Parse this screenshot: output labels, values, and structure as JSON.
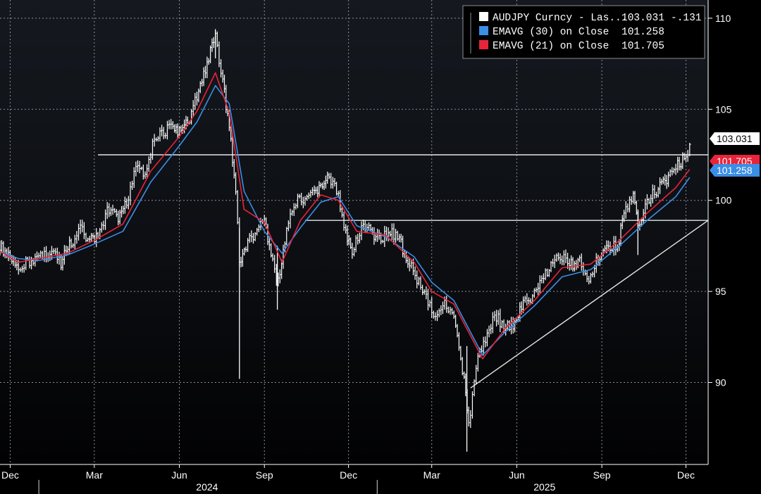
{
  "chart_data": {
    "type": "line",
    "title": "",
    "xlabel": "",
    "ylabel": "",
    "ylim": [
      85.5,
      111
    ],
    "x_range": [
      "2023-11-20",
      "2025-12-25"
    ],
    "grid": true,
    "legend_position": "top-right",
    "y_ticks": [
      90,
      95,
      100,
      105,
      110
    ],
    "x_ticks": [
      {
        "date": "2023-12-01",
        "label": "Dec"
      },
      {
        "date": "2024-03-01",
        "label": "Mar"
      },
      {
        "date": "2024-06-01",
        "label": "Jun"
      },
      {
        "date": "2024-09-01",
        "label": "Sep"
      },
      {
        "date": "2024-12-01",
        "label": "Dec"
      },
      {
        "date": "2025-03-01",
        "label": "Mar"
      },
      {
        "date": "2025-06-01",
        "label": "Jun"
      },
      {
        "date": "2025-09-01",
        "label": "Sep"
      },
      {
        "date": "2025-12-01",
        "label": "Dec"
      }
    ],
    "year_labels": [
      {
        "date": "2024-07-01",
        "label": "2024"
      },
      {
        "date": "2025-07-01",
        "label": "2025"
      }
    ],
    "year_dividers": [
      "2024-01-01",
      "2025-01-01"
    ],
    "series": [
      {
        "name": "AUDJPY Curncy - Las...",
        "legend_value": "103.031",
        "legend_change": "-.131",
        "tag_label": "103.031",
        "color": "#ffffff",
        "style": "bars",
        "points": [
          [
            "2023-11-20",
            97.5
          ],
          [
            "2023-12-01",
            96.8
          ],
          [
            "2023-12-10",
            96.0
          ],
          [
            "2023-12-20",
            96.7
          ],
          [
            "2024-01-01",
            96.9
          ],
          [
            "2024-01-15",
            97.2
          ],
          [
            "2024-01-25",
            96.6
          ],
          [
            "2024-02-05",
            97.7
          ],
          [
            "2024-02-15",
            98.4
          ],
          [
            "2024-02-25",
            97.7
          ],
          [
            "2024-03-05",
            98.0
          ],
          [
            "2024-03-15",
            99.5
          ],
          [
            "2024-03-25",
            99.0
          ],
          [
            "2024-04-05",
            99.8
          ],
          [
            "2024-04-15",
            102.0
          ],
          [
            "2024-04-25",
            101.5
          ],
          [
            "2024-05-05",
            103.3
          ],
          [
            "2024-05-15",
            103.8
          ],
          [
            "2024-05-25",
            104.1
          ],
          [
            "2024-06-01",
            103.7
          ],
          [
            "2024-06-10",
            104.2
          ],
          [
            "2024-06-20",
            105.7
          ],
          [
            "2024-07-01",
            107.5
          ],
          [
            "2024-07-10",
            109.0
          ],
          [
            "2024-07-18",
            106.5
          ],
          [
            "2024-07-25",
            104.0
          ],
          [
            "2024-08-01",
            100.5
          ],
          [
            "2024-08-05",
            96.5
          ],
          [
            "2024-08-12",
            97.5
          ],
          [
            "2024-08-20",
            98.0
          ],
          [
            "2024-09-01",
            99.0
          ],
          [
            "2024-09-10",
            96.5
          ],
          [
            "2024-09-16",
            95.5
          ],
          [
            "2024-09-25",
            98.5
          ],
          [
            "2024-10-05",
            100.0
          ],
          [
            "2024-10-15",
            99.8
          ],
          [
            "2024-10-25",
            100.4
          ],
          [
            "2024-11-01",
            100.8
          ],
          [
            "2024-11-10",
            101.2
          ],
          [
            "2024-11-20",
            100.3
          ],
          [
            "2024-11-28",
            98.3
          ],
          [
            "2024-12-05",
            97.3
          ],
          [
            "2024-12-15",
            98.5
          ],
          [
            "2024-12-25",
            98.3
          ],
          [
            "2025-01-05",
            97.8
          ],
          [
            "2025-01-15",
            98.4
          ],
          [
            "2025-01-25",
            97.8
          ],
          [
            "2025-02-05",
            96.5
          ],
          [
            "2025-02-15",
            95.5
          ],
          [
            "2025-02-25",
            94.5
          ],
          [
            "2025-03-05",
            93.5
          ],
          [
            "2025-03-15",
            94.6
          ],
          [
            "2025-03-25",
            93.5
          ],
          [
            "2025-04-05",
            90.0
          ],
          [
            "2025-04-10",
            87.5
          ],
          [
            "2025-04-18",
            91.0
          ],
          [
            "2025-04-28",
            92.3
          ],
          [
            "2025-05-08",
            93.8
          ],
          [
            "2025-05-18",
            93.0
          ],
          [
            "2025-05-28",
            93.1
          ],
          [
            "2025-06-08",
            94.3
          ],
          [
            "2025-06-18",
            94.6
          ],
          [
            "2025-06-28",
            95.6
          ],
          [
            "2025-07-08",
            96.5
          ],
          [
            "2025-07-18",
            96.9
          ],
          [
            "2025-07-28",
            96.5
          ],
          [
            "2025-08-08",
            96.6
          ],
          [
            "2025-08-18",
            95.7
          ],
          [
            "2025-08-28",
            96.8
          ],
          [
            "2025-09-08",
            97.6
          ],
          [
            "2025-09-18",
            97.4
          ],
          [
            "2025-09-25",
            99.3
          ],
          [
            "2025-10-05",
            100.2
          ],
          [
            "2025-10-12",
            98.5
          ],
          [
            "2025-10-20",
            100.0
          ],
          [
            "2025-11-01",
            100.6
          ],
          [
            "2025-11-12",
            101.3
          ],
          [
            "2025-11-22",
            101.9
          ],
          [
            "2025-12-01",
            102.5
          ],
          [
            "2025-12-05",
            103.0
          ]
        ]
      },
      {
        "name": "EMAVG (30)  on Close",
        "legend_value": "101.258",
        "tag_label": "101.258",
        "color": "#3a8ee6",
        "style": "line",
        "points": [
          [
            "2023-11-20",
            97.2
          ],
          [
            "2023-12-10",
            96.8
          ],
          [
            "2024-01-01",
            96.7
          ],
          [
            "2024-02-01",
            97.0
          ],
          [
            "2024-03-01",
            97.6
          ],
          [
            "2024-04-01",
            98.3
          ],
          [
            "2024-05-01",
            101.0
          ],
          [
            "2024-06-01",
            103.0
          ],
          [
            "2024-06-20",
            104.3
          ],
          [
            "2024-07-10",
            106.3
          ],
          [
            "2024-07-25",
            105.3
          ],
          [
            "2024-08-10",
            100.5
          ],
          [
            "2024-09-01",
            98.3
          ],
          [
            "2024-09-20",
            97.1
          ],
          [
            "2024-10-10",
            98.5
          ],
          [
            "2024-11-01",
            99.9
          ],
          [
            "2024-11-20",
            100.2
          ],
          [
            "2024-12-10",
            98.6
          ],
          [
            "2025-01-10",
            98.0
          ],
          [
            "2025-02-10",
            96.9
          ],
          [
            "2025-03-01",
            95.5
          ],
          [
            "2025-03-25",
            94.5
          ],
          [
            "2025-04-25",
            91.5
          ],
          [
            "2025-05-20",
            92.8
          ],
          [
            "2025-06-20",
            94.2
          ],
          [
            "2025-07-20",
            95.8
          ],
          [
            "2025-08-20",
            96.2
          ],
          [
            "2025-09-20",
            97.5
          ],
          [
            "2025-10-20",
            98.9
          ],
          [
            "2025-11-20",
            100.2
          ],
          [
            "2025-12-05",
            101.258
          ]
        ]
      },
      {
        "name": "EMAVG (21)  on Close",
        "legend_value": "101.705",
        "tag_label": "101.705",
        "color": "#e8243a",
        "style": "line",
        "points": [
          [
            "2023-11-20",
            97.2
          ],
          [
            "2023-12-10",
            96.6
          ],
          [
            "2024-01-01",
            96.8
          ],
          [
            "2024-02-01",
            97.1
          ],
          [
            "2024-03-01",
            97.8
          ],
          [
            "2024-04-01",
            98.7
          ],
          [
            "2024-05-01",
            101.6
          ],
          [
            "2024-06-01",
            103.5
          ],
          [
            "2024-06-20",
            104.9
          ],
          [
            "2024-07-10",
            107.0
          ],
          [
            "2024-07-25",
            104.8
          ],
          [
            "2024-08-10",
            99.5
          ],
          [
            "2024-09-01",
            98.8
          ],
          [
            "2024-09-20",
            96.6
          ],
          [
            "2024-10-10",
            98.9
          ],
          [
            "2024-11-01",
            100.3
          ],
          [
            "2024-11-20",
            100.0
          ],
          [
            "2024-12-10",
            98.3
          ],
          [
            "2025-01-10",
            98.1
          ],
          [
            "2025-02-10",
            96.6
          ],
          [
            "2025-03-01",
            95.0
          ],
          [
            "2025-03-25",
            94.3
          ],
          [
            "2025-04-25",
            91.3
          ],
          [
            "2025-05-20",
            93.0
          ],
          [
            "2025-06-20",
            94.5
          ],
          [
            "2025-07-20",
            96.3
          ],
          [
            "2025-08-20",
            96.5
          ],
          [
            "2025-09-20",
            97.8
          ],
          [
            "2025-10-20",
            99.3
          ],
          [
            "2025-11-20",
            100.7
          ],
          [
            "2025-12-05",
            101.705
          ]
        ]
      }
    ],
    "annotations": [
      {
        "type": "hline",
        "y": 102.5,
        "from": "2024-03-05",
        "to": "2025-12-25"
      },
      {
        "type": "hline",
        "y": 98.9,
        "from": "2024-10-15",
        "to": "2025-12-25"
      },
      {
        "type": "trendline",
        "from": [
          "2025-04-12",
          89.7
        ],
        "to": [
          "2025-12-25",
          98.9
        ]
      }
    ]
  }
}
